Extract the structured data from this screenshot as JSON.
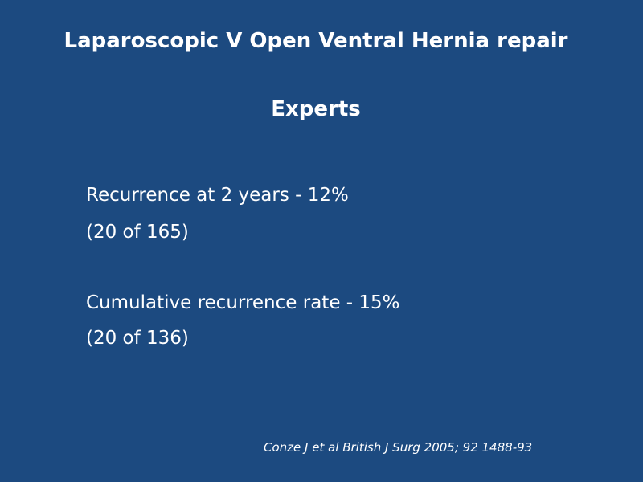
{
  "slide": {
    "title": "Laparoscopic V Open Ventral Hernia repair",
    "subtitle": "Experts",
    "lines": [
      "Recurrence at 2 years - 12%",
      "(20 of 165)",
      "Cumulative recurrence rate - 15%",
      "(20 of 136)"
    ],
    "citation": "Conze J et al British J Surg 2005; 92 1488-93"
  }
}
